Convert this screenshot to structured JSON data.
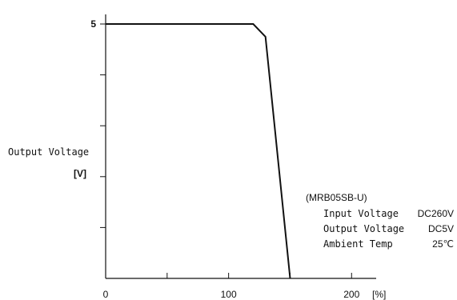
{
  "chart_data": {
    "type": "line",
    "title": "",
    "xlabel": "",
    "x_unit_label": "[%]",
    "ylabel": "Output Voltage",
    "ylabel_unit": "[V]",
    "xlim": [
      0,
      220
    ],
    "ylim": [
      0,
      5
    ],
    "x_ticks": [
      0,
      50,
      100,
      150,
      200
    ],
    "x_tick_labels": [
      "0",
      "",
      "100",
      "",
      "200"
    ],
    "y_ticks": [
      0,
      1,
      2,
      3,
      4,
      5
    ],
    "y_tick_labels": [
      "",
      "",
      "",
      "",
      "",
      "5"
    ],
    "grid": false,
    "series": [
      {
        "name": "",
        "x": [
          0,
          120,
          130,
          150
        ],
        "y": [
          5,
          5,
          4.75,
          0
        ]
      }
    ],
    "annotation": {
      "model": "(MRB05SB-U)",
      "rows": [
        {
          "label": "Input Voltage",
          "value": "DC260V"
        },
        {
          "label": "Output Voltage",
          "value": "DC5V"
        },
        {
          "label": "Ambient Temp",
          "value": "25℃"
        }
      ]
    },
    "colors": {
      "line": "#111111",
      "axis": "#111111"
    }
  }
}
